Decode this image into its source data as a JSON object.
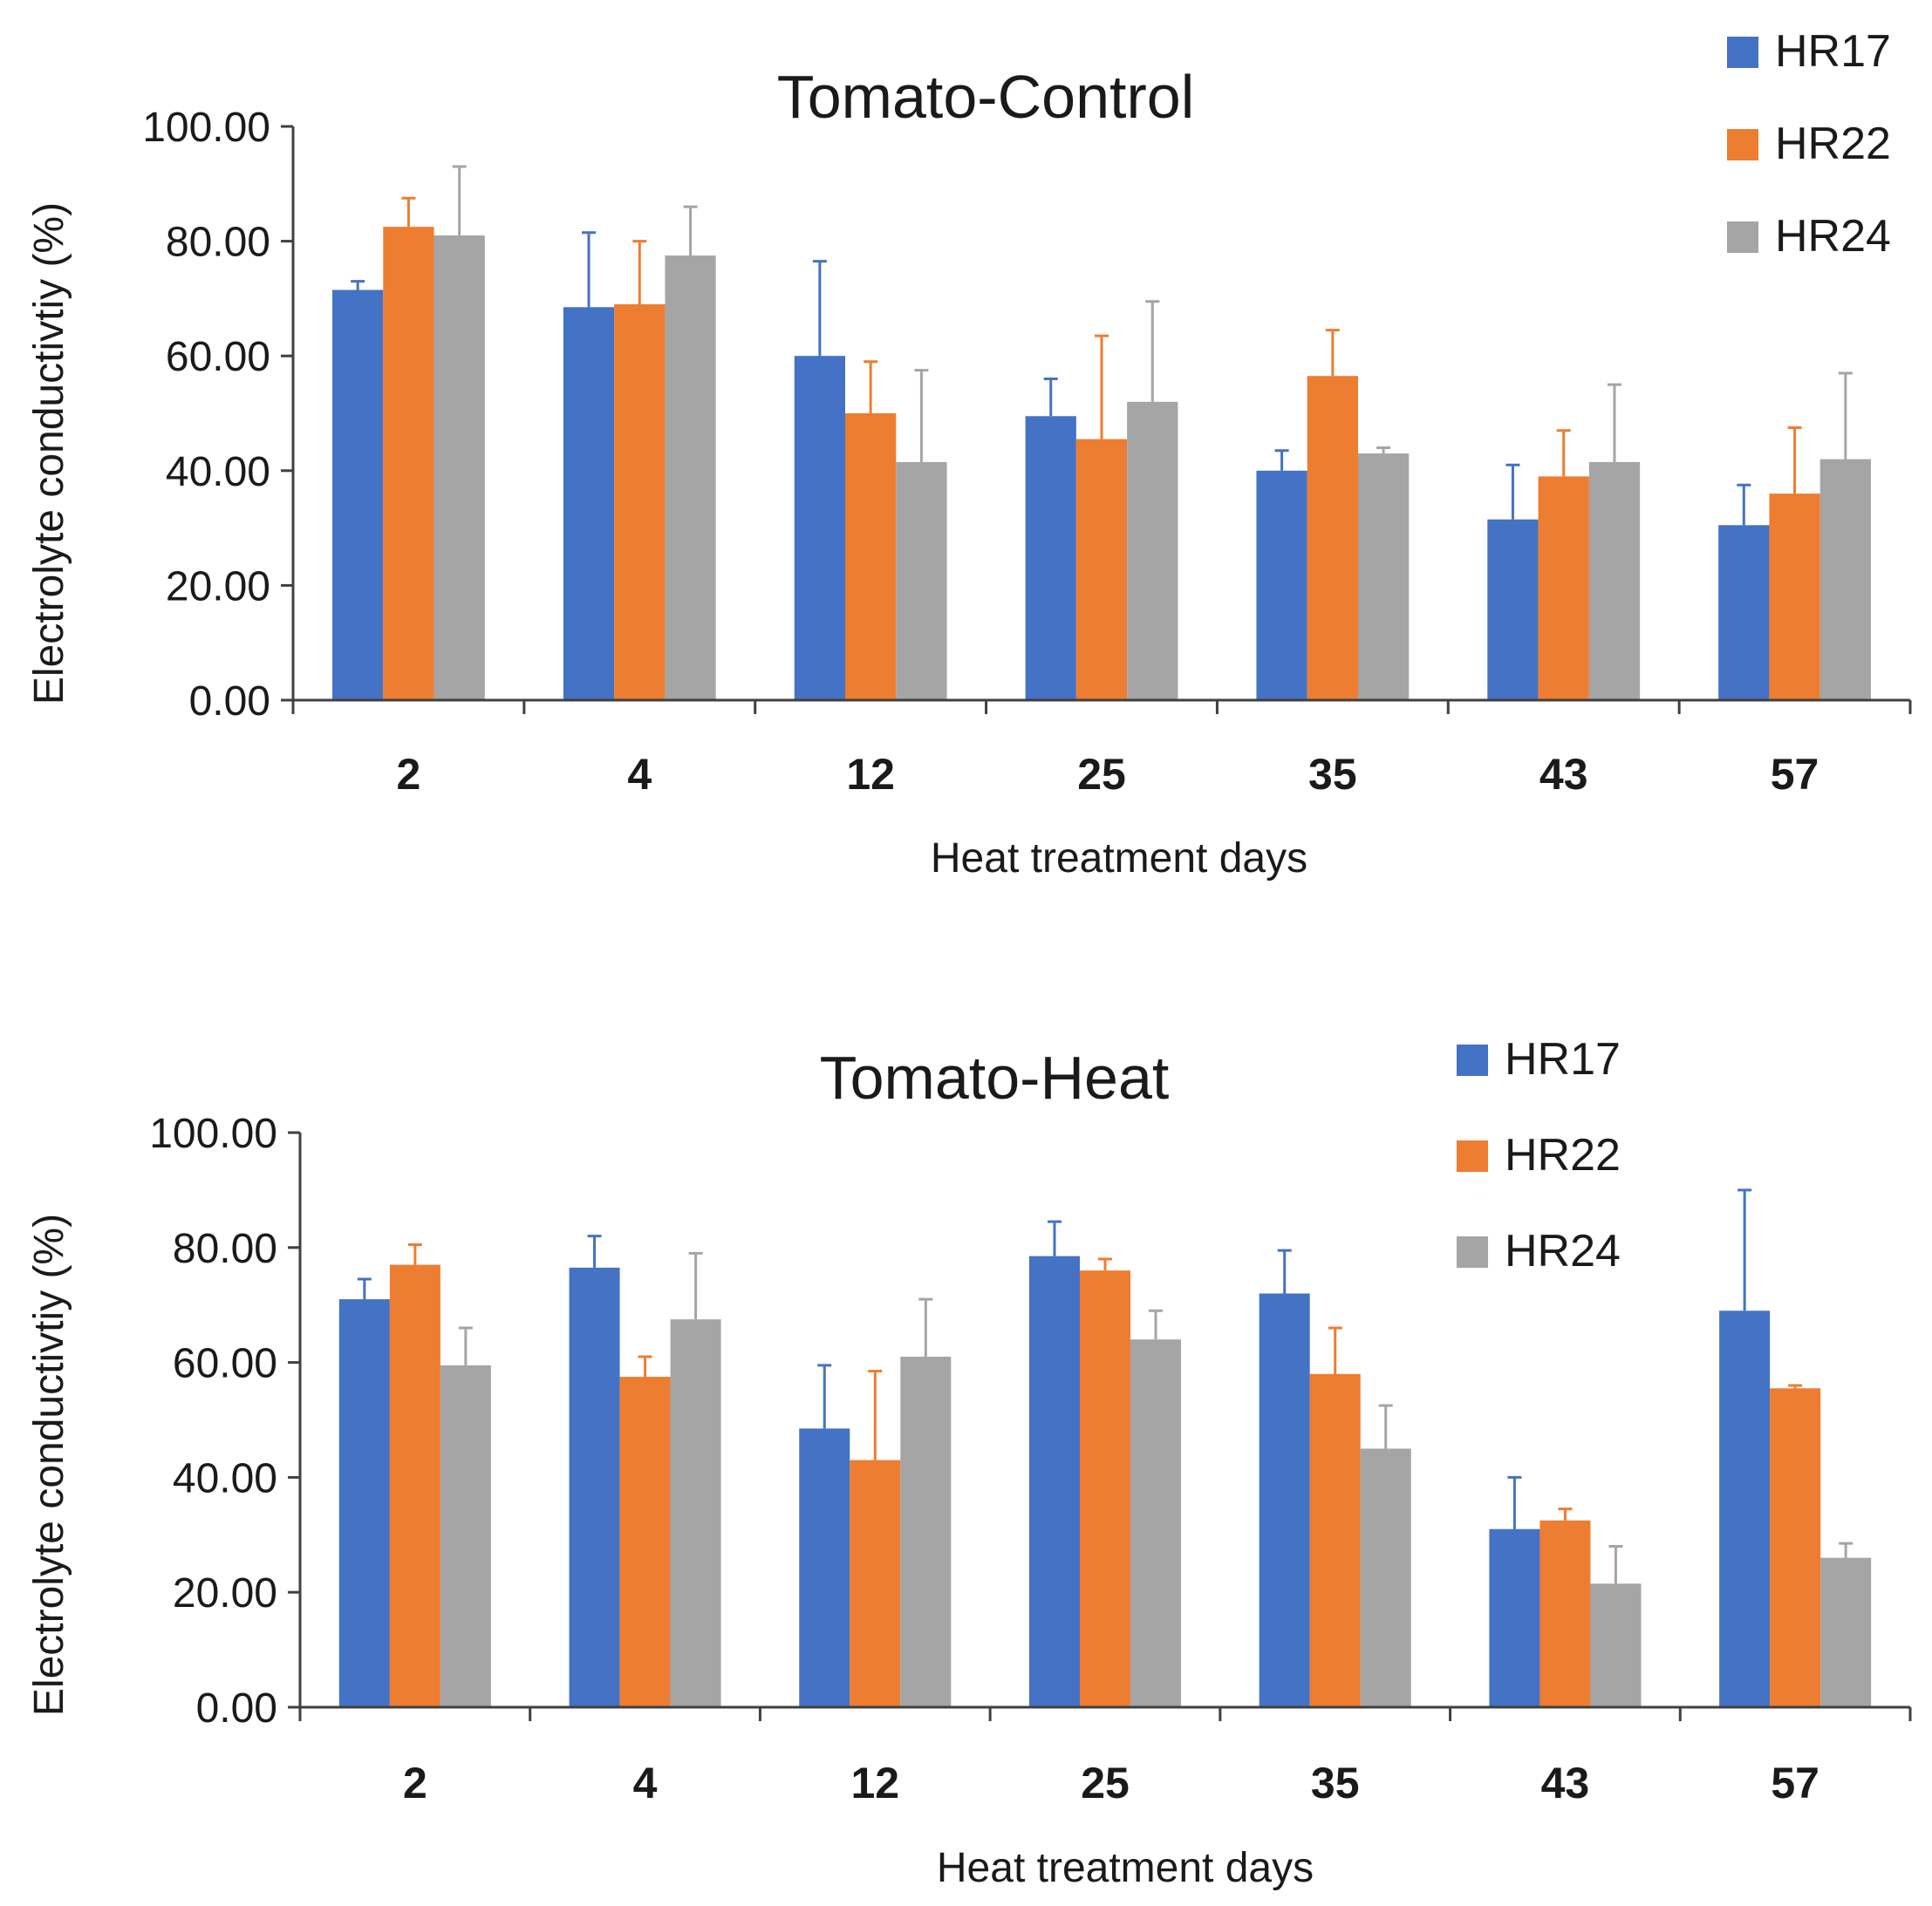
{
  "chart_data": [
    {
      "type": "bar",
      "title": "Tomato-Control",
      "xlabel": "Heat treatment days",
      "ylabel": "Electrolyte conductivtiy (%)",
      "categories": [
        "2",
        "4",
        "12",
        "25",
        "35",
        "43",
        "57"
      ],
      "ylim": [
        0,
        100
      ],
      "yticks": [
        "0.00",
        "20.00",
        "40.00",
        "60.00",
        "80.00",
        "100.00"
      ],
      "legend_position": "top-right",
      "series": [
        {
          "name": "HR17",
          "color": "#4472C4",
          "values": [
            71.5,
            68.5,
            60,
            49.5,
            40,
            31.5,
            30.5
          ],
          "errors": [
            1.5,
            13,
            16.5,
            6.5,
            3.5,
            9.5,
            7
          ]
        },
        {
          "name": "HR22",
          "color": "#ED7D31",
          "values": [
            82.5,
            69,
            50,
            45.5,
            56.5,
            39,
            36
          ],
          "errors": [
            5,
            11,
            9,
            18,
            8,
            8,
            11.5
          ]
        },
        {
          "name": "HR24",
          "color": "#A5A5A5",
          "values": [
            81,
            77.5,
            41.5,
            52,
            43,
            41.5,
            42
          ],
          "errors": [
            12,
            8.5,
            16,
            17.5,
            1,
            13.5,
            15
          ]
        }
      ]
    },
    {
      "type": "bar",
      "title": "Tomato-Heat",
      "xlabel": "Heat treatment days",
      "ylabel": "Electrolyte conductivtiy (%)",
      "categories": [
        "2",
        "4",
        "12",
        "25",
        "35",
        "43",
        "57"
      ],
      "ylim": [
        0,
        100
      ],
      "yticks": [
        "0.00",
        "20.00",
        "40.00",
        "60.00",
        "80.00",
        "100.00"
      ],
      "legend_position": "top-right",
      "series": [
        {
          "name": "HR17",
          "color": "#4472C4",
          "values": [
            71,
            76.5,
            48.5,
            78.5,
            72,
            31,
            69
          ],
          "errors": [
            3.5,
            5.5,
            11,
            6,
            7.5,
            9,
            21
          ]
        },
        {
          "name": "HR22",
          "color": "#ED7D31",
          "values": [
            77,
            57.5,
            43,
            76,
            58,
            32.5,
            55.5
          ],
          "errors": [
            3.5,
            3.5,
            15.5,
            2,
            8,
            2,
            0.5
          ]
        },
        {
          "name": "HR24",
          "color": "#A5A5A5",
          "values": [
            59.5,
            67.5,
            61,
            64,
            45,
            21.5,
            26
          ],
          "errors": [
            6.5,
            11.5,
            10,
            5,
            7.5,
            6.5,
            2.5
          ]
        }
      ]
    }
  ]
}
